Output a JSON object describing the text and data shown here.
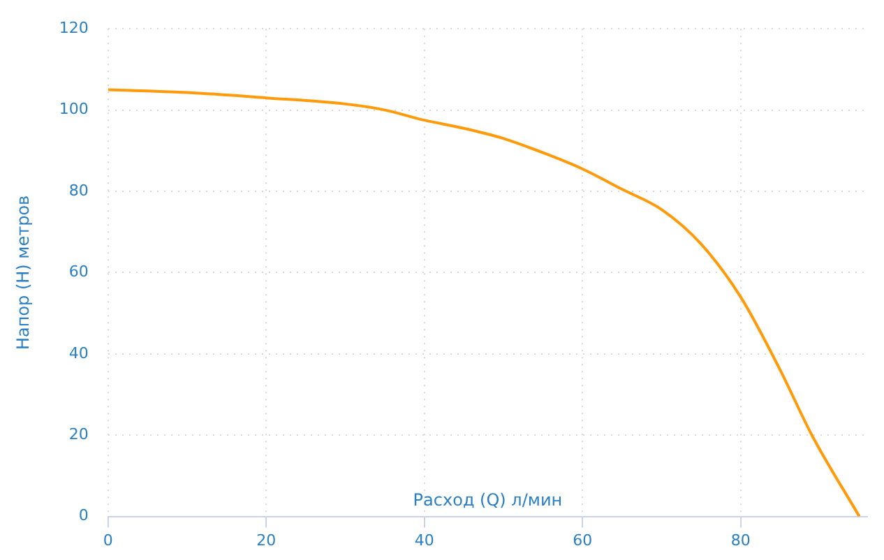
{
  "chart_data": {
    "type": "line",
    "xlabel": "Расход (Q) л/мин",
    "ylabel": "Напор (H) метров",
    "x": [
      0,
      10,
      20,
      30,
      35,
      40,
      45,
      50,
      55,
      60,
      65,
      70,
      75,
      80,
      85,
      89,
      95
    ],
    "series": [
      {
        "color": "#ff9a0a",
        "values": [
          105,
          104.3,
          103,
          101.5,
          100,
          97.5,
          95.5,
          93,
          89.5,
          85.5,
          80.5,
          75.5,
          67,
          54,
          36,
          20,
          0
        ]
      }
    ],
    "xlim": [
      0,
      96
    ],
    "ylim": [
      0,
      120
    ],
    "xticks": [
      0,
      20,
      40,
      60,
      80
    ],
    "yticks": [
      0,
      20,
      40,
      60,
      80,
      100,
      120
    ],
    "grid": true,
    "legend": false,
    "marker": "none",
    "line_style": "solid"
  }
}
